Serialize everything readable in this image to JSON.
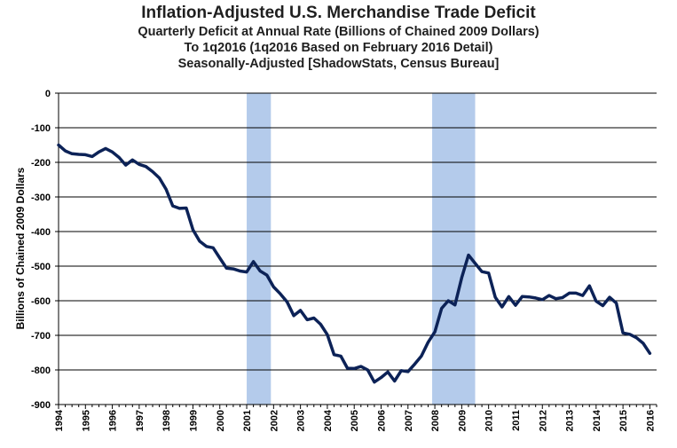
{
  "chart_data": {
    "type": "line",
    "title": "Inflation-Adjusted U.S. Merchandise Trade Deficit",
    "subtitle": [
      "Quarterly Deficit at Annual Rate (Billions of Chained 2009 Dollars)",
      "To 1q2016 (1q2016 Based on February 2016 Detail)",
      "Seasonally-Adjusted [ShadowStats, Census Bureau]"
    ],
    "xlabel": "",
    "ylabel": "Billions  of Chained 2009 Dollars",
    "ylim": [
      -900,
      0
    ],
    "yticks": [
      0,
      -100,
      -200,
      -300,
      -400,
      -500,
      -600,
      -700,
      -800,
      -900
    ],
    "ytick_labels": [
      "0",
      "-100",
      "-200",
      "-300",
      "-400",
      "-500",
      "-600",
      "-700",
      "-800",
      "-900"
    ],
    "xlim": [
      1994,
      2016.25
    ],
    "xtick_labels": [
      "1994",
      "1995",
      "1996",
      "1997",
      "1998",
      "1999",
      "2000",
      "2001",
      "2002",
      "2003",
      "2004",
      "2005",
      "2006",
      "2007",
      "2008",
      "2009",
      "2010",
      "2011",
      "2012",
      "2013",
      "2014",
      "2015",
      "2016"
    ],
    "grid": true,
    "line_color": "#0c2257",
    "shade_color": "#b4cbeb",
    "recessions": [
      {
        "start": 2001.0,
        "end": 2001.9
      },
      {
        "start": 2007.9,
        "end": 2009.5
      }
    ],
    "series": [
      {
        "name": "Merchandise Trade Deficit",
        "x": [
          1994.0,
          1994.25,
          1994.5,
          1994.75,
          1995.0,
          1995.25,
          1995.5,
          1995.75,
          1996.0,
          1996.25,
          1996.5,
          1996.75,
          1997.0,
          1997.25,
          1997.5,
          1997.75,
          1998.0,
          1998.25,
          1998.5,
          1998.75,
          1999.0,
          1999.25,
          1999.5,
          1999.75,
          2000.0,
          2000.25,
          2000.5,
          2000.75,
          2001.0,
          2001.25,
          2001.5,
          2001.75,
          2002.0,
          2002.25,
          2002.5,
          2002.75,
          2003.0,
          2003.25,
          2003.5,
          2003.75,
          2004.0,
          2004.25,
          2004.5,
          2004.75,
          2005.0,
          2005.25,
          2005.5,
          2005.75,
          2006.0,
          2006.25,
          2006.5,
          2006.75,
          2007.0,
          2007.25,
          2007.5,
          2007.75,
          2008.0,
          2008.25,
          2008.5,
          2008.75,
          2009.0,
          2009.25,
          2009.5,
          2009.75,
          2010.0,
          2010.25,
          2010.5,
          2010.75,
          2011.0,
          2011.25,
          2011.5,
          2011.75,
          2012.0,
          2012.25,
          2012.5,
          2012.75,
          2013.0,
          2013.25,
          2013.5,
          2013.75,
          2014.0,
          2014.25,
          2014.5,
          2014.75,
          2015.0,
          2015.25,
          2015.5,
          2015.75,
          2016.0
        ],
        "values": [
          -150,
          -167,
          -175,
          -177,
          -178,
          -183,
          -170,
          -160,
          -170,
          -186,
          -208,
          -193,
          -206,
          -212,
          -227,
          -245,
          -278,
          -326,
          -333,
          -332,
          -395,
          -428,
          -443,
          -447,
          -477,
          -506,
          -508,
          -514,
          -517,
          -487,
          -514,
          -526,
          -560,
          -580,
          -603,
          -643,
          -628,
          -655,
          -650,
          -668,
          -698,
          -756,
          -760,
          -795,
          -796,
          -790,
          -800,
          -835,
          -822,
          -806,
          -832,
          -802,
          -805,
          -783,
          -760,
          -720,
          -690,
          -622,
          -600,
          -612,
          -533,
          -468,
          -492,
          -516,
          -520,
          -590,
          -618,
          -588,
          -613,
          -588,
          -589,
          -592,
          -597,
          -585,
          -594,
          -591,
          -578,
          -578,
          -585,
          -557,
          -601,
          -614,
          -590,
          -607,
          -693,
          -697,
          -707,
          -723,
          -752
        ]
      }
    ]
  }
}
